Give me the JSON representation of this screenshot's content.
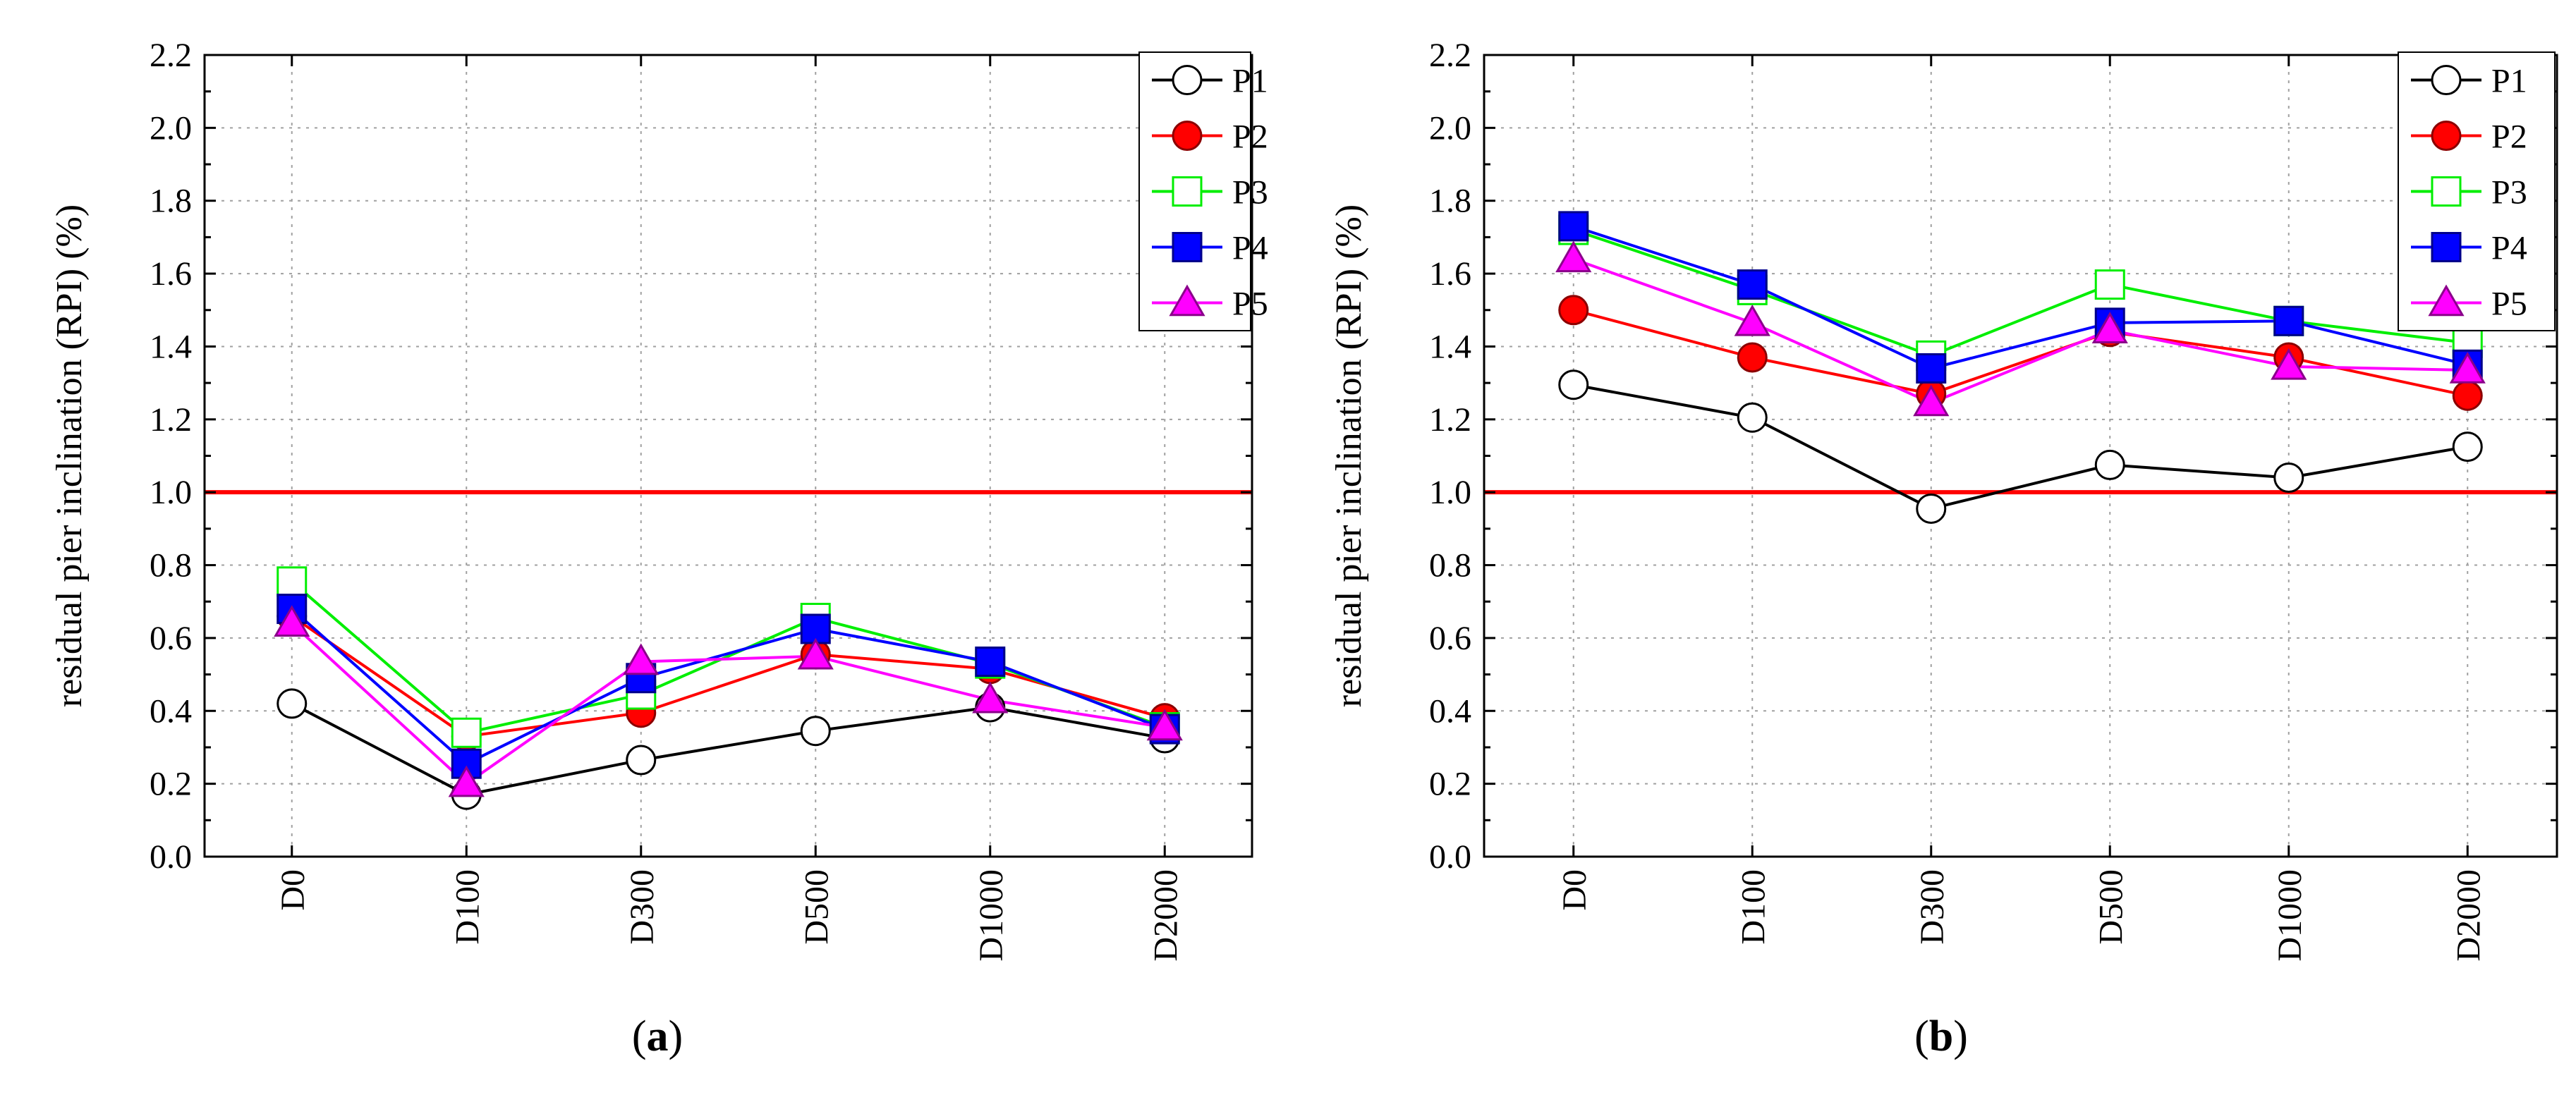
{
  "chart_data": [
    {
      "type": "line",
      "panel_label": "a",
      "ylabel": "residual pier inclination (RPI) (%)",
      "xlabel": "",
      "categories": [
        "D0",
        "D100",
        "D300",
        "D500",
        "D1000",
        "D2000"
      ],
      "ylim": [
        0.0,
        2.2
      ],
      "yticks": [
        "0.0",
        "0.2",
        "0.4",
        "0.6",
        "0.8",
        "1.0",
        "1.2",
        "1.4",
        "1.6",
        "1.8",
        "2.0",
        "2.2"
      ],
      "grid": true,
      "legend_position": "top-right",
      "reference_line": {
        "y": 1.0,
        "color": "#ff0000"
      },
      "series": [
        {
          "name": "P1",
          "color": "#000000",
          "marker": "circle-open",
          "values": [
            0.42,
            0.17,
            0.265,
            0.345,
            0.41,
            0.325
          ]
        },
        {
          "name": "P2",
          "color": "#ff0000",
          "marker": "circle-filled",
          "values": [
            0.66,
            0.33,
            0.395,
            0.555,
            0.515,
            0.38
          ]
        },
        {
          "name": "P3",
          "color": "#00ee00",
          "marker": "square-open",
          "values": [
            0.755,
            0.34,
            0.445,
            0.655,
            0.53,
            0.355
          ]
        },
        {
          "name": "P4",
          "color": "#0000ff",
          "marker": "square-filled",
          "values": [
            0.68,
            0.255,
            0.49,
            0.625,
            0.535,
            0.35
          ]
        },
        {
          "name": "P5",
          "color": "#ff00ff",
          "marker": "triangle-filled",
          "values": [
            0.64,
            0.2,
            0.535,
            0.55,
            0.43,
            0.355
          ]
        }
      ]
    },
    {
      "type": "line",
      "panel_label": "b",
      "ylabel": "residual pier inclination (RPI) (%)",
      "xlabel": "",
      "categories": [
        "D0",
        "D100",
        "D300",
        "D500",
        "D1000",
        "D2000"
      ],
      "ylim": [
        0.0,
        2.2
      ],
      "yticks": [
        "0.0",
        "0.2",
        "0.4",
        "0.6",
        "0.8",
        "1.0",
        "1.2",
        "1.4",
        "1.6",
        "1.8",
        "2.0",
        "2.2"
      ],
      "grid": true,
      "legend_position": "top-right",
      "reference_line": {
        "y": 1.0,
        "color": "#ff0000"
      },
      "series": [
        {
          "name": "P1",
          "color": "#000000",
          "marker": "circle-open",
          "values": [
            1.295,
            1.205,
            0.955,
            1.075,
            1.04,
            1.125
          ]
        },
        {
          "name": "P2",
          "color": "#ff0000",
          "marker": "circle-filled",
          "values": [
            1.5,
            1.37,
            1.27,
            1.44,
            1.37,
            1.265
          ]
        },
        {
          "name": "P3",
          "color": "#00ee00",
          "marker": "square-open",
          "values": [
            1.72,
            1.555,
            1.375,
            1.57,
            1.47,
            1.41
          ]
        },
        {
          "name": "P4",
          "color": "#0000ff",
          "marker": "square-filled",
          "values": [
            1.73,
            1.57,
            1.34,
            1.465,
            1.47,
            1.35
          ]
        },
        {
          "name": "P5",
          "color": "#ff00ff",
          "marker": "triangle-filled",
          "values": [
            1.64,
            1.465,
            1.245,
            1.445,
            1.345,
            1.335
          ]
        }
      ]
    }
  ]
}
